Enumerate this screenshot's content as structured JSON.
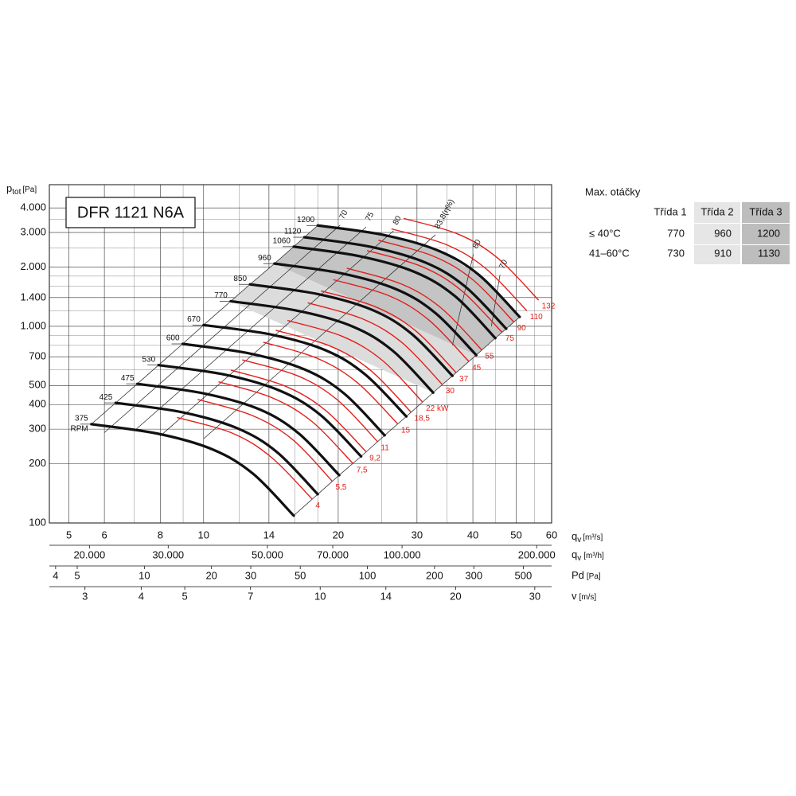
{
  "chart_data": {
    "type": "fan-curves",
    "title": "DFR 1121 N6A",
    "y_label": {
      "symbol": "p",
      "subscript": "tot",
      "unit": "[Pa]"
    },
    "x_label": {
      "symbol": "q",
      "subscript": "v",
      "unit": "[m³/s]"
    },
    "log_x": true,
    "log_y": true,
    "grid": true,
    "xlim": [
      4.52,
      60
    ],
    "ylim": [
      100,
      5250
    ],
    "xticks": [
      5,
      6,
      8,
      10,
      14,
      20,
      30,
      40,
      50,
      60
    ],
    "yticks": [
      100,
      200,
      300,
      400,
      500,
      700,
      {
        "value": 1000,
        "label": "1.000"
      },
      {
        "value": 1400,
        "label": "1.400"
      },
      {
        "value": 2000,
        "label": "2.000"
      },
      {
        "value": 3000,
        "label": "3.000"
      },
      {
        "value": 4000,
        "label": "4.000"
      }
    ],
    "xminor": [
      7,
      9,
      12,
      16,
      18,
      25,
      35,
      45,
      55
    ],
    "yminor": [
      600,
      800,
      900,
      1200,
      1600,
      1800,
      2500,
      3500
    ],
    "rpm_unit": "RPM",
    "series": [
      {
        "name": "375",
        "color": "#111111",
        "x": [
          5.61,
          7.93,
          10.5,
          12.9,
          15.9
        ],
        "values": [
          318,
          284,
          236,
          178,
          109
        ]
      },
      {
        "name": "425",
        "color": "#111111",
        "x": [
          6.36,
          8.99,
          11.9,
          14.6,
          18.0
        ],
        "values": [
          408,
          365,
          303,
          229,
          140
        ]
      },
      {
        "name": "475",
        "color": "#111111",
        "x": [
          7.11,
          10.0,
          13.3,
          16.3,
          20.1
        ],
        "values": [
          510,
          456,
          379,
          286,
          175
        ]
      },
      {
        "name": "530",
        "color": "#111111",
        "x": [
          7.93,
          11.2,
          14.8,
          18.2,
          22.5
        ],
        "values": [
          635,
          567,
          471,
          356,
          218
        ]
      },
      {
        "name": "600",
        "color": "#111111",
        "x": [
          8.98,
          12.7,
          16.8,
          20.6,
          25.4
        ],
        "values": [
          814,
          727,
          604,
          456,
          279
        ]
      },
      {
        "name": "670",
        "color": "#111111",
        "x": [
          10.0,
          14.2,
          18.8,
          23.0,
          28.4
        ],
        "values": [
          1015,
          907,
          753,
          568,
          348
        ]
      },
      {
        "name": "770",
        "color": "#111111",
        "x": [
          11.5,
          16.3,
          21.6,
          26.5,
          32.6
        ],
        "values": [
          1341,
          1197,
          995,
          750,
          460
        ]
      },
      {
        "name": "850",
        "color": "#111111",
        "x": [
          12.7,
          18.0,
          23.8,
          29.2,
          36.0
        ],
        "values": [
          1634,
          1459,
          1213,
          915,
          560
        ]
      },
      {
        "name": "960",
        "color": "#111111",
        "x": [
          14.4,
          20.3,
          26.9,
          33.0,
          40.7
        ],
        "values": [
          2084,
          1861,
          1547,
          1167,
          714
        ]
      },
      {
        "name": "1060",
        "color": "#111111",
        "x": [
          15.9,
          22.4,
          29.7,
          36.5,
          44.9
        ],
        "values": [
          2541,
          2269,
          1886,
          1422,
          871
        ]
      },
      {
        "name": "1120",
        "color": "#111111",
        "x": [
          16.8,
          23.7,
          31.4,
          38.5,
          47.5
        ],
        "values": [
          2837,
          2533,
          2105,
          1588,
          972
        ]
      },
      {
        "name": "1200",
        "color": "#111111",
        "x": [
          18.0,
          25.4,
          33.6,
          41.3,
          50.9
        ],
        "values": [
          3256,
          2908,
          2417,
          1823,
          1116
        ]
      }
    ],
    "power_lines": {
      "color": "#e0201b",
      "lines": [
        {
          "name": "4",
          "x": [
            8.72,
            11.6,
            14.2,
            17.5
          ],
          "values": [
            344,
            286,
            215,
            132
          ]
        },
        {
          "name": "5,5",
          "x": [
            9.7,
            12.8,
            15.8,
            19.4
          ],
          "values": [
            425,
            353,
            266,
            163
          ]
        },
        {
          "name": "7,5",
          "x": [
            10.8,
            14.2,
            17.5,
            21.6
          ],
          "values": [
            522,
            434,
            327,
            200
          ]
        },
        {
          "name": "9,2",
          "x": [
            11.5,
            15.2,
            18.7,
            23.1
          ],
          "values": [
            599,
            497,
            375,
            230
          ]
        },
        {
          "name": "11",
          "x": [
            12.2,
            16.2,
            19.9,
            24.5
          ],
          "values": [
            675,
            561,
            423,
            259
          ]
        },
        {
          "name": "15",
          "x": [
            13.6,
            17.9,
            22.0,
            27.2
          ],
          "values": [
            830,
            689,
            520,
            318
          ]
        },
        {
          "name": "18,5",
          "x": [
            14.5,
            19.2,
            23.6,
            29.1
          ],
          "values": [
            954,
            793,
            598,
            366
          ]
        },
        {
          "name": "22 kW",
          "x": [
            15.4,
            20.4,
            25.1,
            30.9
          ],
          "values": [
            1071,
            890,
            671,
            411
          ]
        },
        {
          "name": "30",
          "x": [
            17.1,
            22.6,
            27.8,
            34.2
          ],
          "values": [
            1316,
            1094,
            825,
            505
          ]
        },
        {
          "name": "37",
          "x": [
            18.3,
            24.2,
            29.8,
            36.7
          ],
          "values": [
            1514,
            1258,
            949,
            581
          ]
        },
        {
          "name": "45",
          "x": [
            19.5,
            25.9,
            31.8,
            39.2
          ],
          "values": [
            1726,
            1434,
            1082,
            662
          ]
        },
        {
          "name": "55",
          "x": [
            20.9,
            27.7,
            34.0,
            41.9
          ],
          "values": [
            1974,
            1640,
            1237,
            757
          ]
        },
        {
          "name": "75",
          "x": [
            23.2,
            30.7,
            37.7,
            46.5
          ],
          "values": [
            2427,
            2016,
            1521,
            931
          ]
        },
        {
          "name": "90",
          "x": [
            24.6,
            32.6,
            40.1,
            49.4
          ],
          "values": [
            2738,
            2275,
            1716,
            1051
          ]
        },
        {
          "name": "110",
          "x": [
            26.3,
            34.9,
            42.8,
            52.8
          ],
          "values": [
            3130,
            2601,
            1962,
            1201
          ]
        },
        {
          "name": "132",
          "x": [
            28.0,
            37.1,
            45.5,
            56.1
          ],
          "values": [
            3539,
            2941,
            2218,
            1358
          ]
        }
      ]
    },
    "efficiency_lines": [
      {
        "name": "70",
        "x": [
          20.2,
          6
        ],
        "values": [
          3270,
          288
        ]
      },
      {
        "name": "75",
        "x": [
          23.1,
          7
        ],
        "values": [
          3200,
          294
        ]
      },
      {
        "name": "80",
        "x": [
          26.6,
          8
        ],
        "values": [
          3060,
          277
        ]
      },
      {
        "name": "83,8(η%)",
        "x": [
          33.0,
          10
        ],
        "values": [
          2920,
          268
        ]
      },
      {
        "name": "80",
        "x": [
          40.1,
          36
        ],
        "values": [
          2320,
          800
        ]
      },
      {
        "name": "70",
        "x": [
          46,
          44
        ],
        "values": [
          1830,
          1000
        ]
      }
    ],
    "secondary_axes": [
      {
        "symbol": "q",
        "subscript": "v",
        "unit": "[m³/h]",
        "lim": [
          16272,
          216000
        ],
        "ticks": [
          {
            "value": 20000,
            "label": "20.000"
          },
          {
            "value": 30000,
            "label": "30.000"
          },
          {
            "value": 50000,
            "label": "50.000"
          },
          {
            "value": 70000,
            "label": "70.000"
          },
          {
            "value": 100000,
            "label": "100.000"
          },
          {
            "value": 200000,
            "label": "200.000"
          }
        ]
      },
      {
        "symbol": "Pd",
        "unit": "[Pa]",
        "lim": [
          3.75,
          670
        ],
        "ticks": [
          4,
          5,
          10,
          20,
          30,
          50,
          100,
          200,
          300,
          500
        ]
      },
      {
        "symbol": "v",
        "unit": "[m/s]",
        "lim": [
          2.5,
          32.7
        ],
        "ticks": [
          3,
          4,
          5,
          7,
          10,
          14,
          20,
          30
        ]
      }
    ]
  },
  "table": {
    "title": "Max. otáčky",
    "header": [
      "Třída 1",
      "Třída 2",
      "Třída 3"
    ],
    "rows": [
      {
        "label": "≤ 40°C",
        "cells": [
          770,
          960,
          1200
        ]
      },
      {
        "label": "41–60°C",
        "cells": [
          730,
          910,
          1130
        ]
      }
    ]
  }
}
